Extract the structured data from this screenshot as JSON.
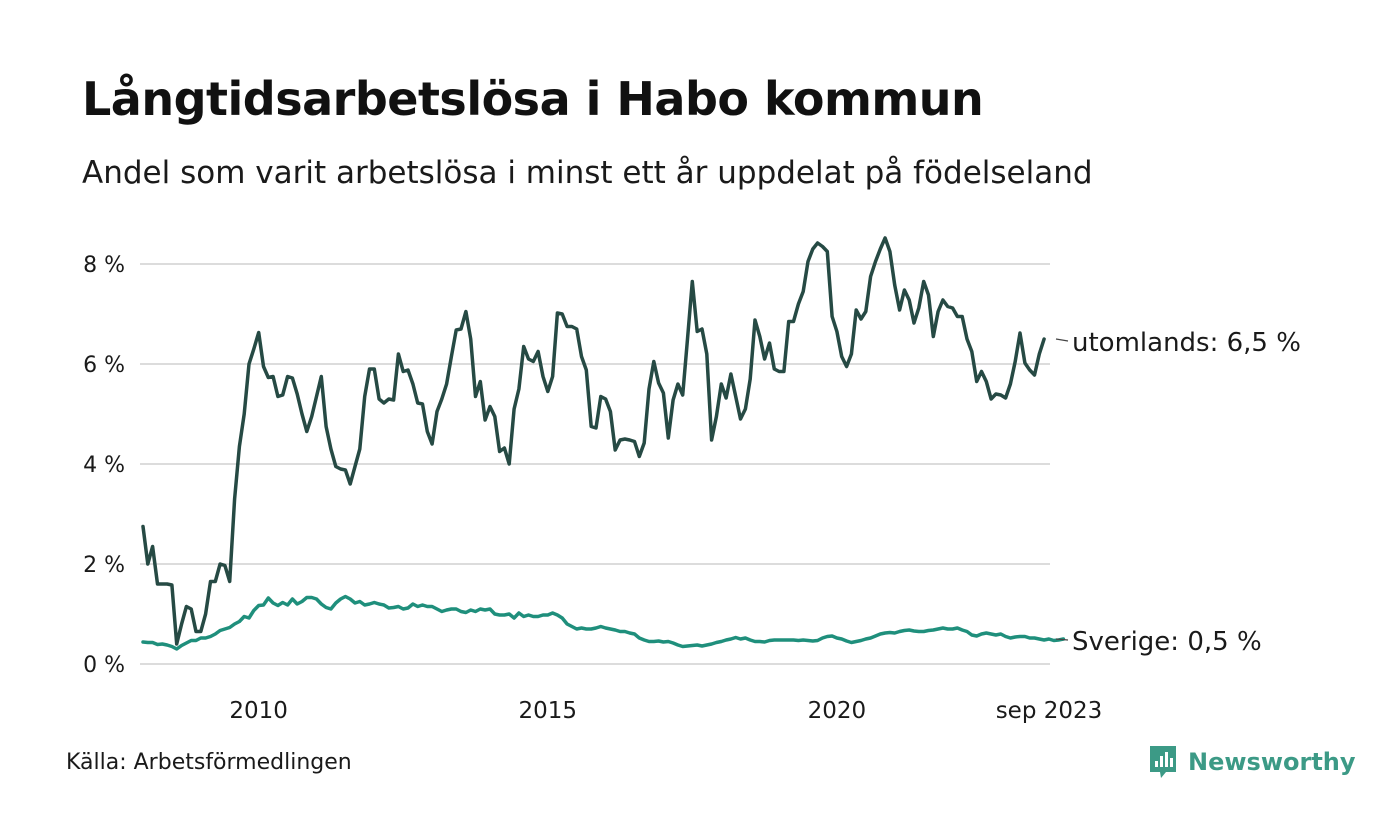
{
  "chart_data": {
    "type": "line",
    "title": "Långtidsarbetslösa i Habo kommun",
    "subtitle": "Andel som varit arbetslösa i minst ett år uppdelat på födelseland",
    "ylim": [
      0,
      8.6
    ],
    "yticks": [
      {
        "value": 0,
        "label": "0 %"
      },
      {
        "value": 2,
        "label": "2 %"
      },
      {
        "value": 4,
        "label": "4 %"
      },
      {
        "value": 6,
        "label": "6 %"
      },
      {
        "value": 8,
        "label": "8 %"
      }
    ],
    "xlim": [
      2008.0,
      2023.667
    ],
    "xticks": [
      {
        "value": 2010.0,
        "label": "2010"
      },
      {
        "value": 2015.0,
        "label": "2015"
      },
      {
        "value": 2020.0,
        "label": "2020"
      },
      {
        "value": 2023.667,
        "label": "sep 2023"
      }
    ],
    "grid": true,
    "series": [
      {
        "name": "utomlands",
        "end_label": "utomlands: 6,5 %",
        "color": "#264a44",
        "start": 2008.0,
        "step": 0.08333,
        "values": [
          2.75,
          2.0,
          2.35,
          1.6,
          1.6,
          1.6,
          1.58,
          0.4,
          0.8,
          1.15,
          1.1,
          0.65,
          0.65,
          1.0,
          1.65,
          1.65,
          2.0,
          1.97,
          1.65,
          3.3,
          4.35,
          5.0,
          6.0,
          6.3,
          6.63,
          5.95,
          5.73,
          5.75,
          5.35,
          5.38,
          5.75,
          5.72,
          5.4,
          5.0,
          4.65,
          4.95,
          5.35,
          5.75,
          4.75,
          4.3,
          3.95,
          3.9,
          3.88,
          3.6,
          3.95,
          4.3,
          5.35,
          5.9,
          5.9,
          5.3,
          5.22,
          5.3,
          5.28,
          6.2,
          5.85,
          5.88,
          5.6,
          5.22,
          5.2,
          4.65,
          4.4,
          5.05,
          5.3,
          5.6,
          6.15,
          6.68,
          6.7,
          7.05,
          6.5,
          5.35,
          5.65,
          4.88,
          5.15,
          4.95,
          4.25,
          4.32,
          4.0,
          5.1,
          5.5,
          6.35,
          6.1,
          6.05,
          6.25,
          5.75,
          5.45,
          5.75,
          7.02,
          7.0,
          6.75,
          6.75,
          6.7,
          6.15,
          5.88,
          4.75,
          4.72,
          5.35,
          5.3,
          5.05,
          4.28,
          4.48,
          4.5,
          4.48,
          4.45,
          4.15,
          4.42,
          5.5,
          6.05,
          5.62,
          5.42,
          4.52,
          5.28,
          5.6,
          5.38,
          6.5,
          7.65,
          6.65,
          6.7,
          6.2,
          4.48,
          4.95,
          5.6,
          5.32,
          5.8,
          5.35,
          4.9,
          5.1,
          5.7,
          6.88,
          6.55,
          6.1,
          6.42,
          5.9,
          5.85,
          5.85,
          6.85,
          6.85,
          7.2,
          7.45,
          8.05,
          8.3,
          8.42,
          8.35,
          8.25,
          6.95,
          6.65,
          6.15,
          5.95,
          6.2,
          7.08,
          6.9,
          7.05,
          7.75,
          8.05,
          8.3,
          8.52,
          8.25,
          7.58,
          7.08,
          7.48,
          7.28,
          6.82,
          7.12,
          7.65,
          7.38,
          6.55,
          7.05,
          7.28,
          7.15,
          7.12,
          6.95,
          6.95,
          6.5,
          6.25,
          5.65,
          5.85,
          5.65,
          5.3,
          5.4,
          5.38,
          5.32,
          5.6,
          6.05,
          6.62,
          6.02,
          5.88,
          5.78,
          6.2,
          6.5
        ]
      },
      {
        "name": "Sverige",
        "end_label": "Sverige: 0,5 %",
        "color": "#1f8f7c",
        "start": 2008.0,
        "step": 0.08333,
        "values": [
          0.44,
          0.43,
          0.43,
          0.39,
          0.4,
          0.38,
          0.35,
          0.3,
          0.37,
          0.42,
          0.47,
          0.47,
          0.52,
          0.52,
          0.55,
          0.6,
          0.67,
          0.7,
          0.73,
          0.8,
          0.85,
          0.95,
          0.92,
          1.07,
          1.17,
          1.18,
          1.32,
          1.22,
          1.17,
          1.23,
          1.18,
          1.3,
          1.2,
          1.25,
          1.33,
          1.33,
          1.3,
          1.2,
          1.13,
          1.1,
          1.22,
          1.3,
          1.35,
          1.3,
          1.22,
          1.25,
          1.18,
          1.2,
          1.23,
          1.2,
          1.18,
          1.12,
          1.13,
          1.15,
          1.1,
          1.12,
          1.2,
          1.15,
          1.18,
          1.15,
          1.15,
          1.1,
          1.05,
          1.08,
          1.1,
          1.1,
          1.05,
          1.03,
          1.08,
          1.05,
          1.1,
          1.08,
          1.1,
          1.0,
          0.98,
          0.98,
          1.0,
          0.92,
          1.02,
          0.95,
          0.98,
          0.95,
          0.95,
          0.98,
          0.98,
          1.02,
          0.98,
          0.92,
          0.8,
          0.75,
          0.7,
          0.72,
          0.7,
          0.7,
          0.72,
          0.75,
          0.72,
          0.7,
          0.68,
          0.65,
          0.65,
          0.62,
          0.6,
          0.52,
          0.48,
          0.45,
          0.45,
          0.46,
          0.44,
          0.45,
          0.42,
          0.38,
          0.35,
          0.36,
          0.37,
          0.38,
          0.36,
          0.38,
          0.4,
          0.43,
          0.45,
          0.48,
          0.5,
          0.53,
          0.5,
          0.52,
          0.48,
          0.45,
          0.45,
          0.44,
          0.47,
          0.48,
          0.48,
          0.48,
          0.48,
          0.48,
          0.47,
          0.48,
          0.47,
          0.46,
          0.47,
          0.52,
          0.55,
          0.56,
          0.52,
          0.5,
          0.46,
          0.43,
          0.45,
          0.47,
          0.5,
          0.52,
          0.56,
          0.6,
          0.62,
          0.63,
          0.62,
          0.65,
          0.67,
          0.68,
          0.66,
          0.65,
          0.65,
          0.67,
          0.68,
          0.7,
          0.72,
          0.7,
          0.7,
          0.72,
          0.68,
          0.65,
          0.58,
          0.56,
          0.6,
          0.62,
          0.6,
          0.58,
          0.6,
          0.55,
          0.52,
          0.54,
          0.55,
          0.55,
          0.52,
          0.52,
          0.5,
          0.48,
          0.5,
          0.47,
          0.48,
          0.5
        ]
      }
    ]
  },
  "source": "Källa: Arbetsförmedlingen",
  "brand": "Newsworthy",
  "colors": {
    "grid": "#dcdcdc",
    "brand": "#3c9a86"
  }
}
